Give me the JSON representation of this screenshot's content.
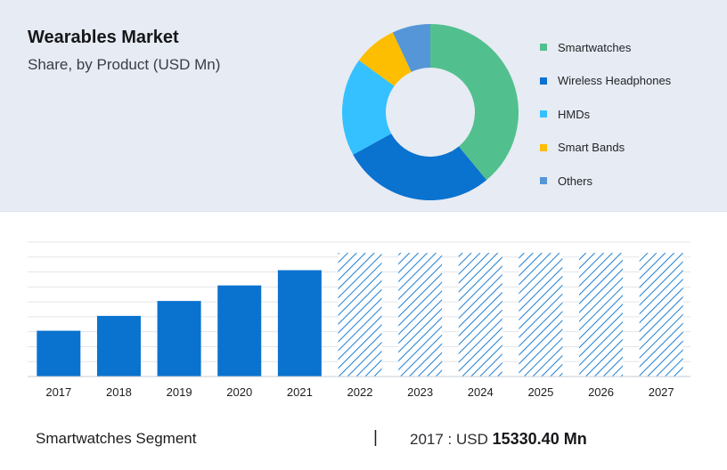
{
  "header": {
    "title": "Wearables Market",
    "subtitle": "Share, by Product (USD Mn)"
  },
  "chart_data": [
    {
      "type": "pie",
      "variant": "donut",
      "slices": [
        {
          "label": "Smartwatches",
          "value": 39,
          "color": "#52c08e"
        },
        {
          "label": "Wireless Headphones",
          "value": 28,
          "color": "#0a72cf"
        },
        {
          "label": "HMDs",
          "value": 18,
          "color": "#35c1ff"
        },
        {
          "label": "Smart Bands",
          "value": 8,
          "color": "#fdbd00"
        },
        {
          "label": "Others",
          "value": 7,
          "color": "#5596d8"
        }
      ],
      "legend_position": "right"
    },
    {
      "type": "bar",
      "categories": [
        "2017",
        "2018",
        "2019",
        "2020",
        "2021",
        "2022",
        "2023",
        "2024",
        "2025",
        "2026",
        "2027"
      ],
      "values": [
        15330.4,
        20300,
        25300,
        30500,
        35600,
        41400,
        41400,
        41400,
        41400,
        41400,
        41400
      ],
      "projected_from": "2022",
      "bar_color": "#0a72cf",
      "ylim": [
        0,
        45000
      ],
      "y_axis_labels_visible": false,
      "grid": true
    }
  ],
  "footer": {
    "segment_label": "Smartwatches Segment",
    "separator": "|",
    "value_prefix": "2017 : USD",
    "value": "15330.40 Mn"
  }
}
